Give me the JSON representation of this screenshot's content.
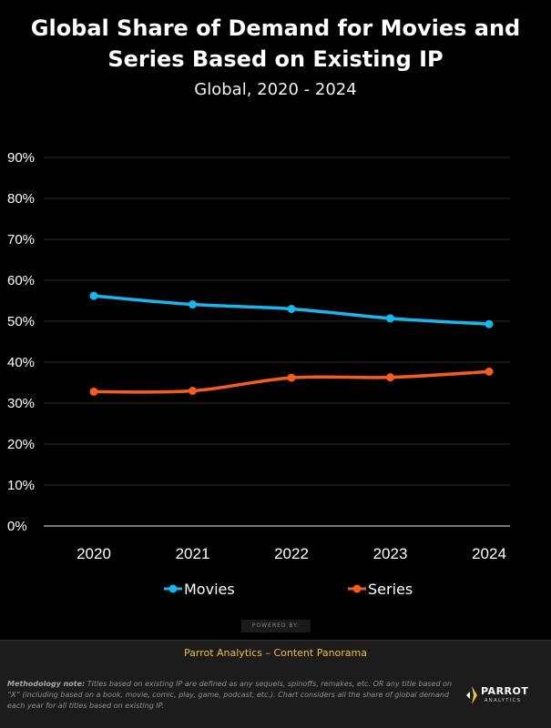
{
  "header": {
    "title_line1": "Global Share of Demand for Movies and",
    "title_line2": "Series Based on Existing IP",
    "subtitle": "Global, 2020 - 2024"
  },
  "chart_data": {
    "type": "line",
    "title": "Global Share of Demand for Movies and Series Based on Existing IP",
    "subtitle": "Global, 2020 - 2024",
    "x": [
      "2020",
      "2021",
      "2022",
      "2023",
      "2024"
    ],
    "y_ticks": [
      "0%",
      "10%",
      "20%",
      "30%",
      "40%",
      "50%",
      "60%",
      "70%",
      "80%",
      "90%"
    ],
    "ylim": [
      0,
      90
    ],
    "grid": true,
    "legend": "bottom",
    "series": [
      {
        "name": "Movies",
        "values": [
          56.2,
          54.1,
          53.0,
          50.7,
          49.3
        ],
        "color": "#19b5ee"
      },
      {
        "name": "Series",
        "values": [
          32.8,
          33.0,
          36.2,
          36.3,
          37.7
        ],
        "color": "#f45d1f"
      }
    ]
  },
  "powered_by": "POWERED BY:",
  "source_band": "Parrot Analytics – Content Panorama",
  "footer": {
    "methodology_label": "Methodology note:",
    "methodology_text": "Titles based on existing IP are defined as any sequels, spinoffs, remakes, etc. OR any title based on “X” (including based on a book, movie, comic, play, game, podcast, etc.).  Chart considers all the share of global demand each year for all titles based on existing IP.",
    "logo_name": "PARROT",
    "logo_sub": "ANALYTICS"
  }
}
